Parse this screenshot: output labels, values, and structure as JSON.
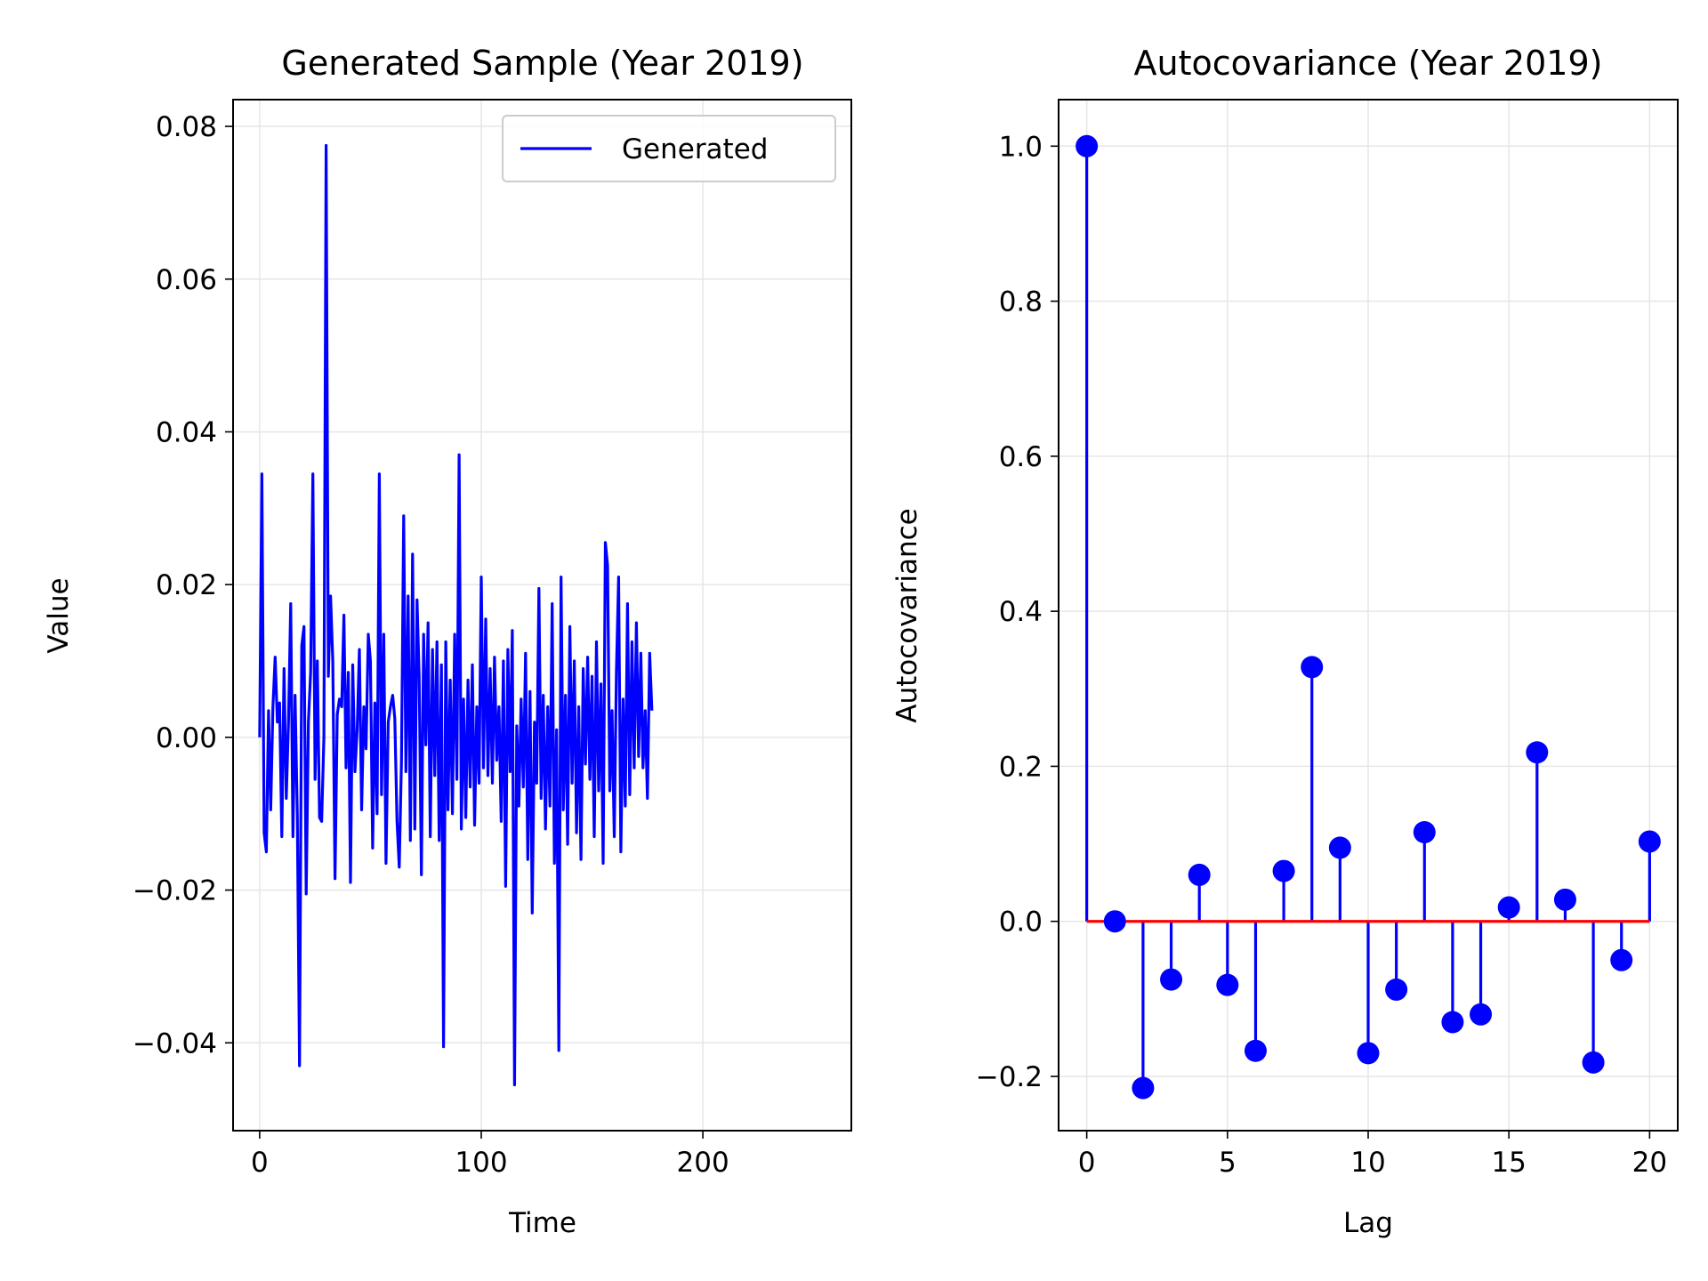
{
  "chart_data": [
    {
      "type": "line",
      "title": "Generated Sample (Year 2019)",
      "xlabel": "Time",
      "ylabel": "Value",
      "xlim": [
        -12,
        267
      ],
      "ylim": [
        -0.0515,
        0.0835
      ],
      "xticks": [
        0,
        100,
        200
      ],
      "xtick_labels": [
        "0",
        "100",
        "200"
      ],
      "yticks": [
        -0.04,
        -0.02,
        0.0,
        0.02,
        0.04,
        0.06,
        0.08
      ],
      "ytick_labels": [
        "−0.04",
        "−0.02",
        "0.00",
        "0.02",
        "0.04",
        "0.06",
        "0.08"
      ],
      "grid": true,
      "legend": {
        "position": "upper-right",
        "entries": [
          "Generated"
        ]
      },
      "series": [
        {
          "name": "Generated",
          "color": "#0000ff",
          "x_start": 0,
          "x_step": 1,
          "values": [
            0.0,
            0.0345,
            -0.0125,
            -0.015,
            0.0035,
            -0.0095,
            0.004,
            0.0105,
            0.002,
            0.0045,
            -0.013,
            0.009,
            -0.008,
            0.002,
            0.0175,
            -0.013,
            0.0055,
            -0.01,
            -0.043,
            0.012,
            0.0145,
            -0.0205,
            0.002,
            0.0085,
            0.0345,
            -0.0055,
            0.01,
            -0.0105,
            -0.011,
            0.0,
            0.0775,
            0.008,
            0.0185,
            0.01,
            -0.0185,
            0.003,
            0.005,
            0.004,
            0.016,
            -0.004,
            0.0085,
            -0.019,
            0.0095,
            -0.0045,
            0.001,
            0.0115,
            -0.0095,
            0.004,
            -0.0015,
            0.0135,
            0.01,
            -0.0145,
            0.0045,
            -0.01,
            0.0345,
            -0.0075,
            0.0135,
            -0.0165,
            0.002,
            0.004,
            0.0055,
            0.0025,
            -0.011,
            -0.017,
            -0.003,
            0.029,
            -0.0045,
            0.0185,
            -0.0135,
            0.024,
            -0.012,
            0.018,
            0.008,
            -0.018,
            0.0135,
            -0.001,
            0.015,
            -0.013,
            0.0115,
            -0.005,
            0.0125,
            -0.0135,
            0.0095,
            -0.0405,
            0.0125,
            -0.0095,
            0.0075,
            -0.01,
            0.0135,
            -0.0055,
            0.037,
            -0.012,
            0.005,
            -0.0105,
            0.0075,
            -0.0065,
            0.0095,
            -0.0115,
            0.004,
            -0.006,
            0.021,
            -0.004,
            0.0155,
            -0.005,
            0.009,
            -0.006,
            0.0105,
            -0.003,
            0.004,
            -0.011,
            0.01,
            -0.0195,
            0.0115,
            -0.0045,
            0.014,
            -0.0455,
            0.0015,
            -0.009,
            0.005,
            -0.0065,
            0.011,
            -0.016,
            0.006,
            -0.023,
            0.002,
            -0.006,
            0.0195,
            -0.008,
            0.0055,
            -0.012,
            0.004,
            -0.009,
            0.0175,
            -0.0165,
            0.001,
            -0.041,
            0.021,
            -0.0095,
            0.0055,
            -0.014,
            0.0145,
            -0.006,
            0.01,
            -0.0125,
            0.004,
            -0.016,
            0.009,
            -0.0035,
            0.0105,
            -0.0055,
            0.008,
            -0.013,
            0.0125,
            -0.007,
            0.007,
            -0.0165,
            0.0255,
            0.0225,
            -0.007,
            0.0035,
            -0.013,
            0.0085,
            0.021,
            -0.015,
            0.005,
            -0.009,
            0.0175,
            -0.0075,
            0.0125,
            -0.004,
            0.015,
            -0.0025,
            0.011,
            -0.004,
            0.0035,
            -0.008,
            0.011,
            0.0035
          ]
        }
      ]
    },
    {
      "type": "stem",
      "title": "Autocovariance (Year 2019)",
      "xlabel": "Lag",
      "ylabel": "Autocovariance",
      "xlim": [
        -1,
        21
      ],
      "ylim": [
        -0.27,
        1.06
      ],
      "xticks": [
        0,
        5,
        10,
        15,
        20
      ],
      "xtick_labels": [
        "0",
        "5",
        "10",
        "15",
        "20"
      ],
      "yticks": [
        -0.2,
        0.0,
        0.2,
        0.4,
        0.6,
        0.8,
        1.0
      ],
      "ytick_labels": [
        "−0.2",
        "0.0",
        "0.2",
        "0.4",
        "0.6",
        "0.8",
        "1.0"
      ],
      "grid": true,
      "baseline": {
        "value": 0.0,
        "color": "#ff0000"
      },
      "marker_color": "#0000ff",
      "x": [
        0,
        1,
        2,
        3,
        4,
        5,
        6,
        7,
        8,
        9,
        10,
        11,
        12,
        13,
        14,
        15,
        16,
        17,
        18,
        19,
        20
      ],
      "values": [
        1.0,
        0.0,
        -0.215,
        -0.075,
        0.06,
        -0.082,
        -0.167,
        0.065,
        0.328,
        0.095,
        -0.17,
        -0.088,
        0.115,
        -0.13,
        -0.12,
        0.018,
        0.218,
        0.028,
        -0.182,
        -0.05,
        0.103
      ]
    }
  ]
}
